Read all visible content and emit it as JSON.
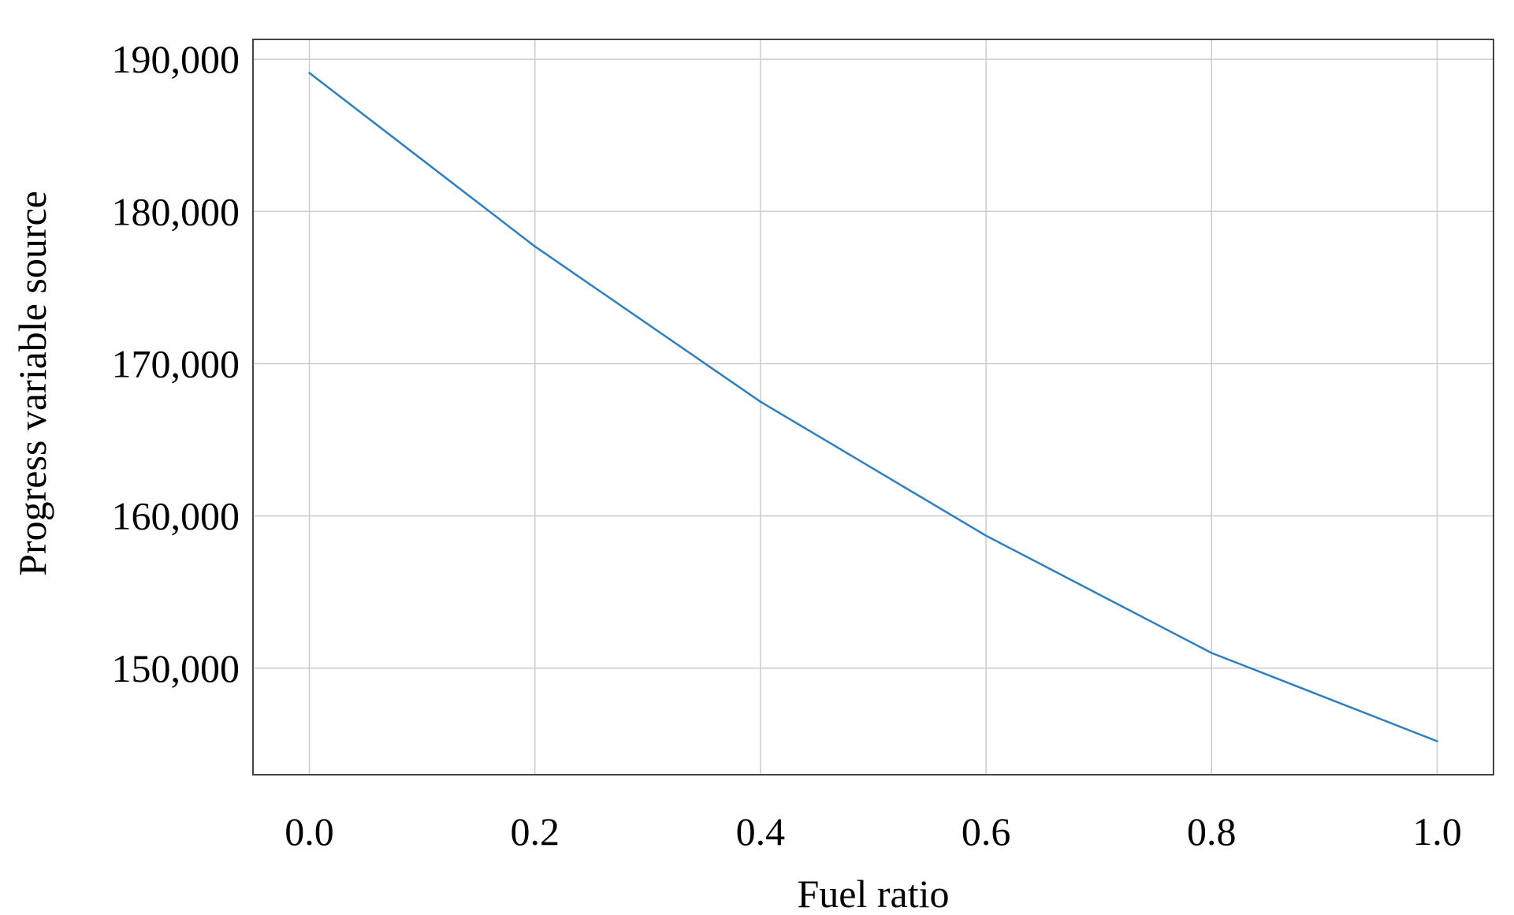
{
  "chart_data": {
    "type": "line",
    "title": "",
    "xlabel": "Fuel ratio",
    "ylabel": "Progress variable source",
    "x": [
      0.0,
      0.2,
      0.4,
      0.6,
      0.8,
      1.0
    ],
    "series": [
      {
        "values": [
          189100,
          177700,
          167500,
          158700,
          151000,
          145200
        ],
        "color": "#2e7fc0"
      }
    ],
    "xlim": [
      -0.05,
      1.05
    ],
    "ylim": [
      143000,
      191300
    ],
    "xticks": [
      0.0,
      0.2,
      0.4,
      0.6,
      0.8,
      1.0
    ],
    "xtick_labels": [
      "0.0",
      "0.2",
      "0.4",
      "0.6",
      "0.8",
      "1.0"
    ],
    "yticks": [
      150000,
      160000,
      170000,
      180000,
      190000
    ],
    "ytick_labels": [
      "150,000",
      "160,000",
      "170,000",
      "180,000",
      "190,000"
    ],
    "grid": true,
    "legend": "none"
  }
}
